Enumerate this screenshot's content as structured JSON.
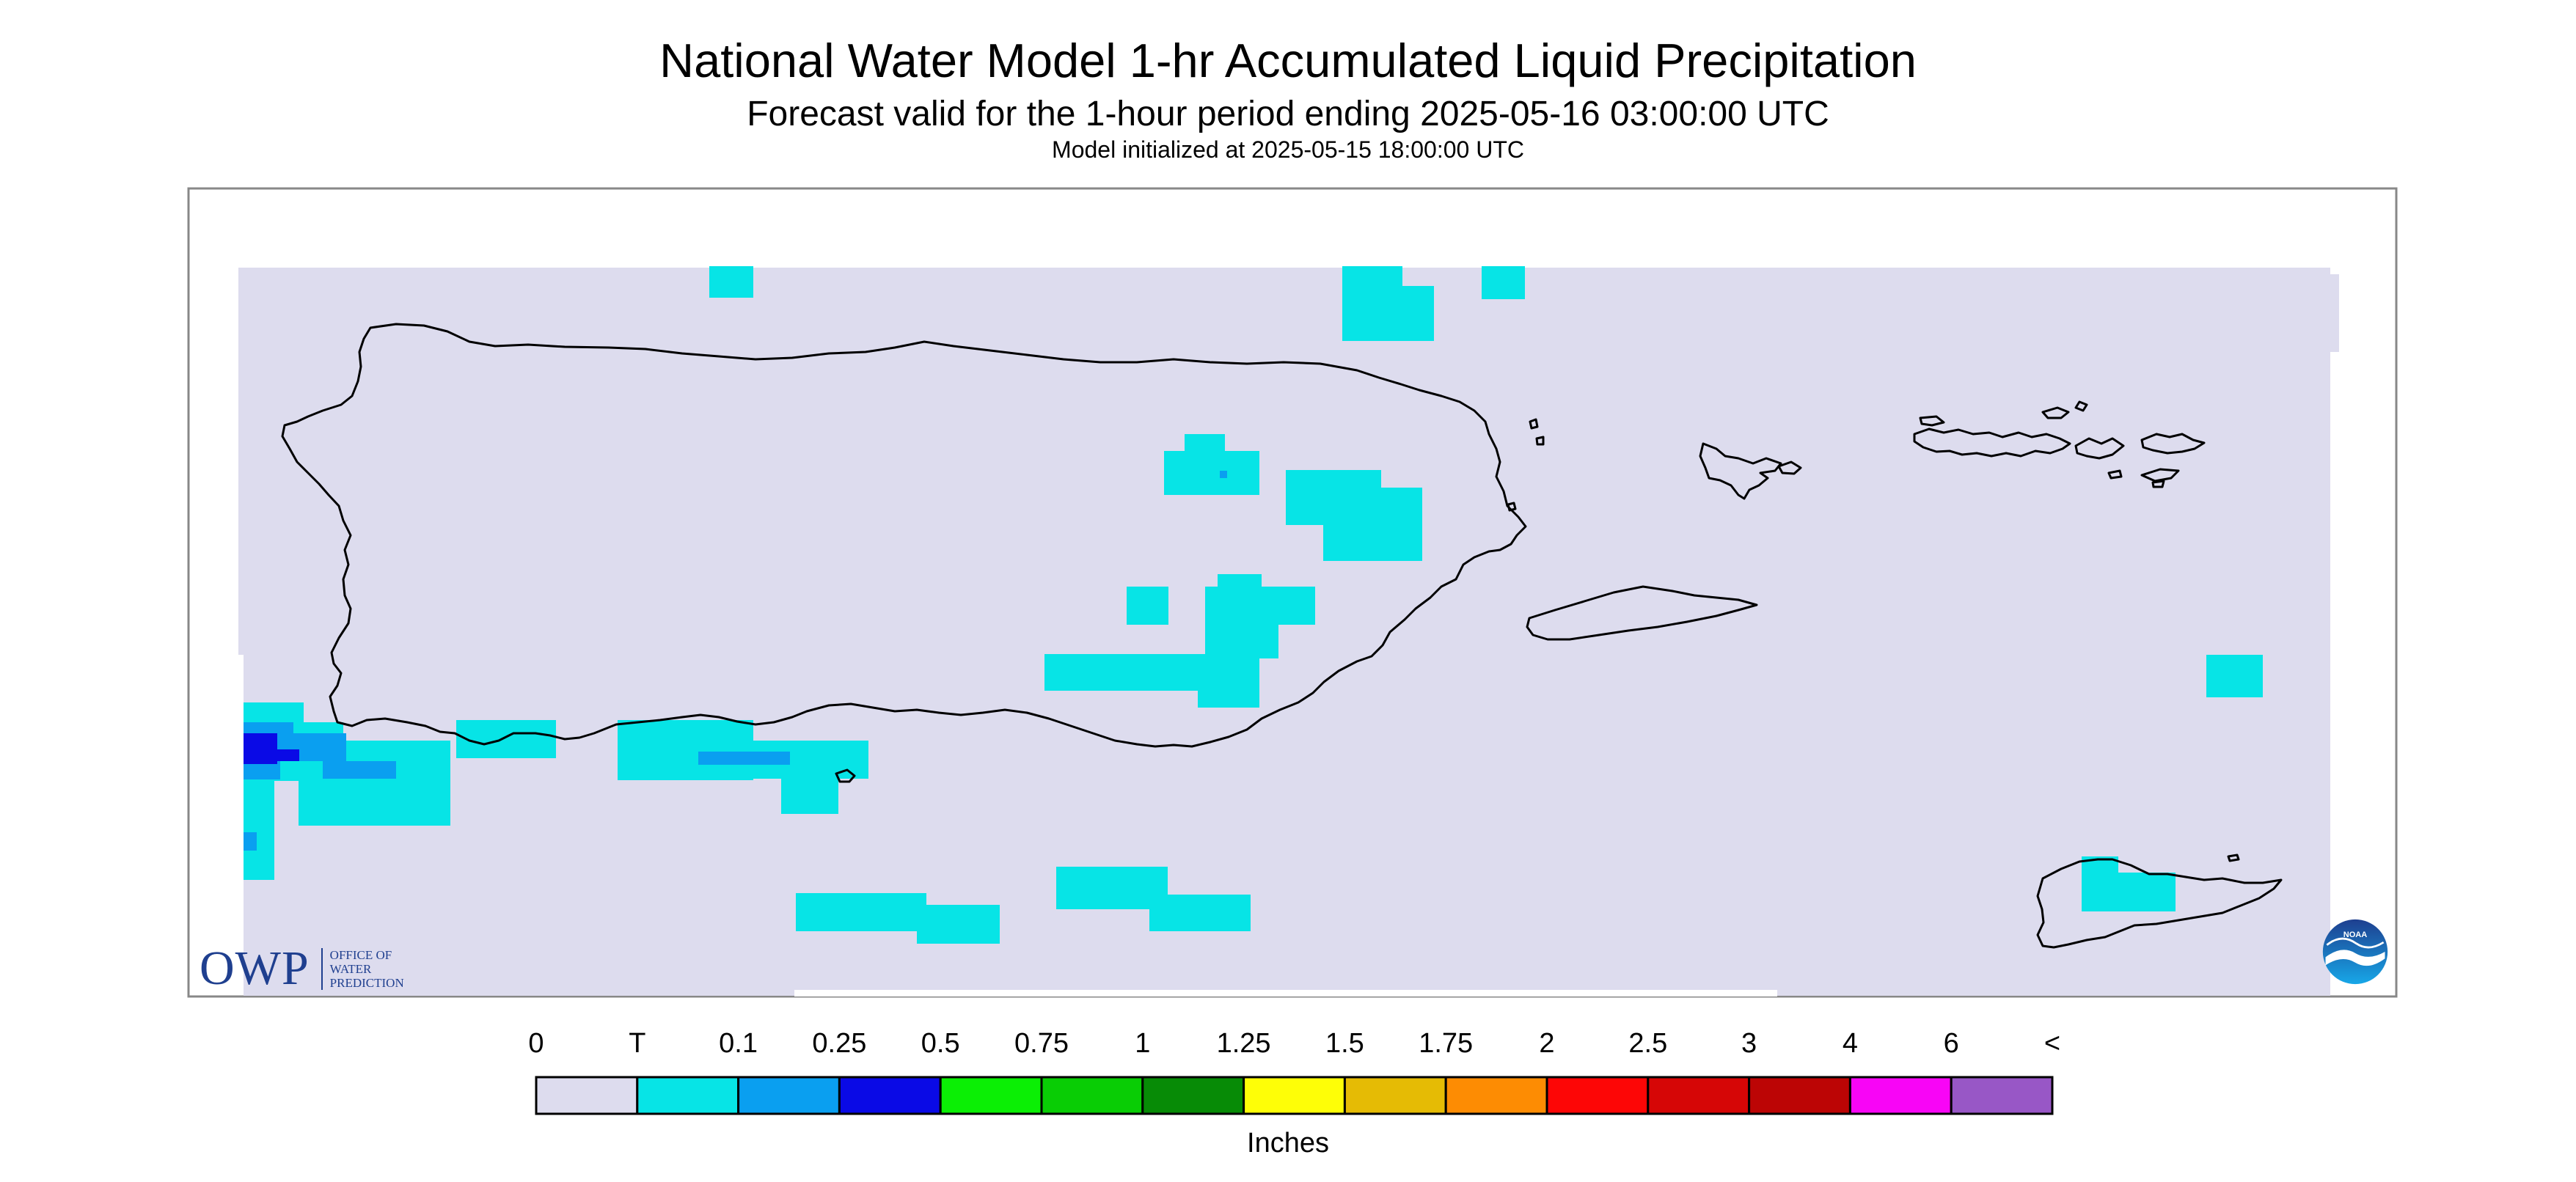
{
  "header": {
    "title": "National Water Model 1-hr Accumulated Liquid Precipitation",
    "subtitle": "Forecast valid for the 1-hour period ending 2025-05-16 03:00:00 UTC",
    "init_line": "Model initialized at 2025-05-15 18:00:00 UTC"
  },
  "colors": {
    "no_data_background": "#dddcee",
    "coastline": "#000000",
    "frame": "#888888"
  },
  "legend": {
    "unit": "Inches",
    "labels": [
      "0",
      "T",
      "0.1",
      "0.25",
      "0.5",
      "0.75",
      "1",
      "1.25",
      "1.5",
      "1.75",
      "2",
      "2.5",
      "3",
      "4",
      "6",
      "<"
    ],
    "colors": [
      "#dddcee",
      "#07e4e6",
      "#0a9ff0",
      "#0a0ae6",
      "#0bef05",
      "#09cd05",
      "#078b06",
      "#fefe07",
      "#e5bb05",
      "#fd8c03",
      "#fd0606",
      "#d60606",
      "#bc0505",
      "#f805f6",
      "#9857c6"
    ]
  },
  "logos": {
    "owp_mark": "OWP",
    "owp_text": [
      "OFFICE OF",
      "WATER",
      "PREDICTION"
    ],
    "noaa_text": "NOAA"
  },
  "icons": {
    "owp": "owp-logo",
    "noaa": "noaa-seagull-logo"
  }
}
